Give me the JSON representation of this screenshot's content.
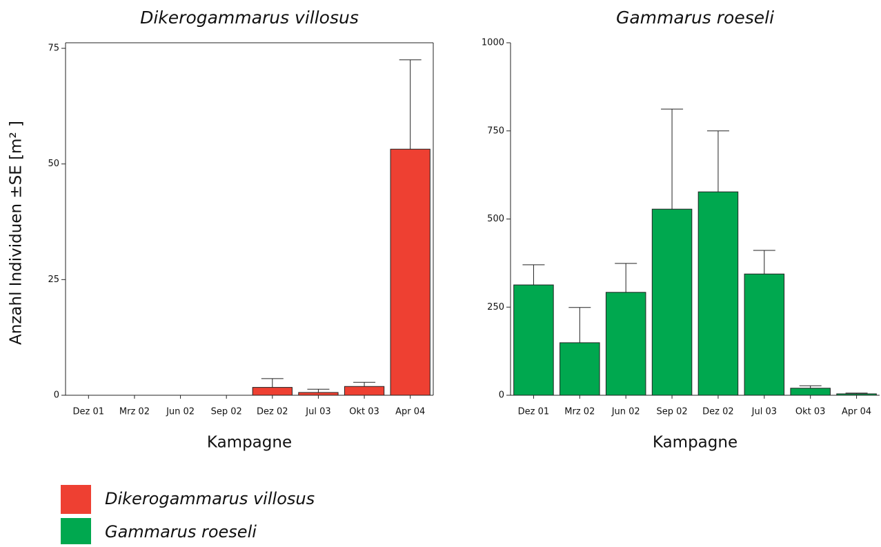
{
  "chart_data": [
    {
      "type": "bar",
      "title": "Dikerogammarus  villosus",
      "x_label": "Kampagne",
      "y_label": "Anzahl Individuen   ±SE [m² ]",
      "categories": [
        "Dez 01",
        "Mrz 02",
        "Jun 02",
        "Sep 02",
        "Dez 02",
        "Jul 03",
        "Okt 03",
        "Apr 04"
      ],
      "series": [
        {
          "name": "Dikerogammarus villosus",
          "color": "#ee4032",
          "values": [
            0,
            0,
            0,
            0,
            1.7,
            0.6,
            1.9,
            53.2
          ],
          "errors": [
            0,
            0,
            0,
            0,
            1.9,
            0.7,
            0.9,
            19.3
          ]
        }
      ],
      "ylim": [
        0,
        76.2
      ],
      "yticks": [
        0,
        25,
        50,
        75
      ]
    },
    {
      "type": "bar",
      "title": "Gammarus roeseli",
      "x_label": "Kampagne",
      "categories": [
        "Dez 01",
        "Mrz 02",
        "Jun 02",
        "Sep 02",
        "Dez 02",
        "Jul 03",
        "Okt 03",
        "Apr 04"
      ],
      "series": [
        {
          "name": "Gammarus roeseli",
          "color": "#00a84f",
          "values": [
            313,
            149,
            292,
            528,
            577,
            344,
            20,
            4
          ],
          "errors": [
            57,
            100,
            82,
            284,
            173,
            67,
            7,
            2
          ]
        }
      ],
      "ylim": [
        0,
        1000
      ],
      "yticks": [
        0,
        250,
        500,
        750,
        1000
      ]
    }
  ]
}
